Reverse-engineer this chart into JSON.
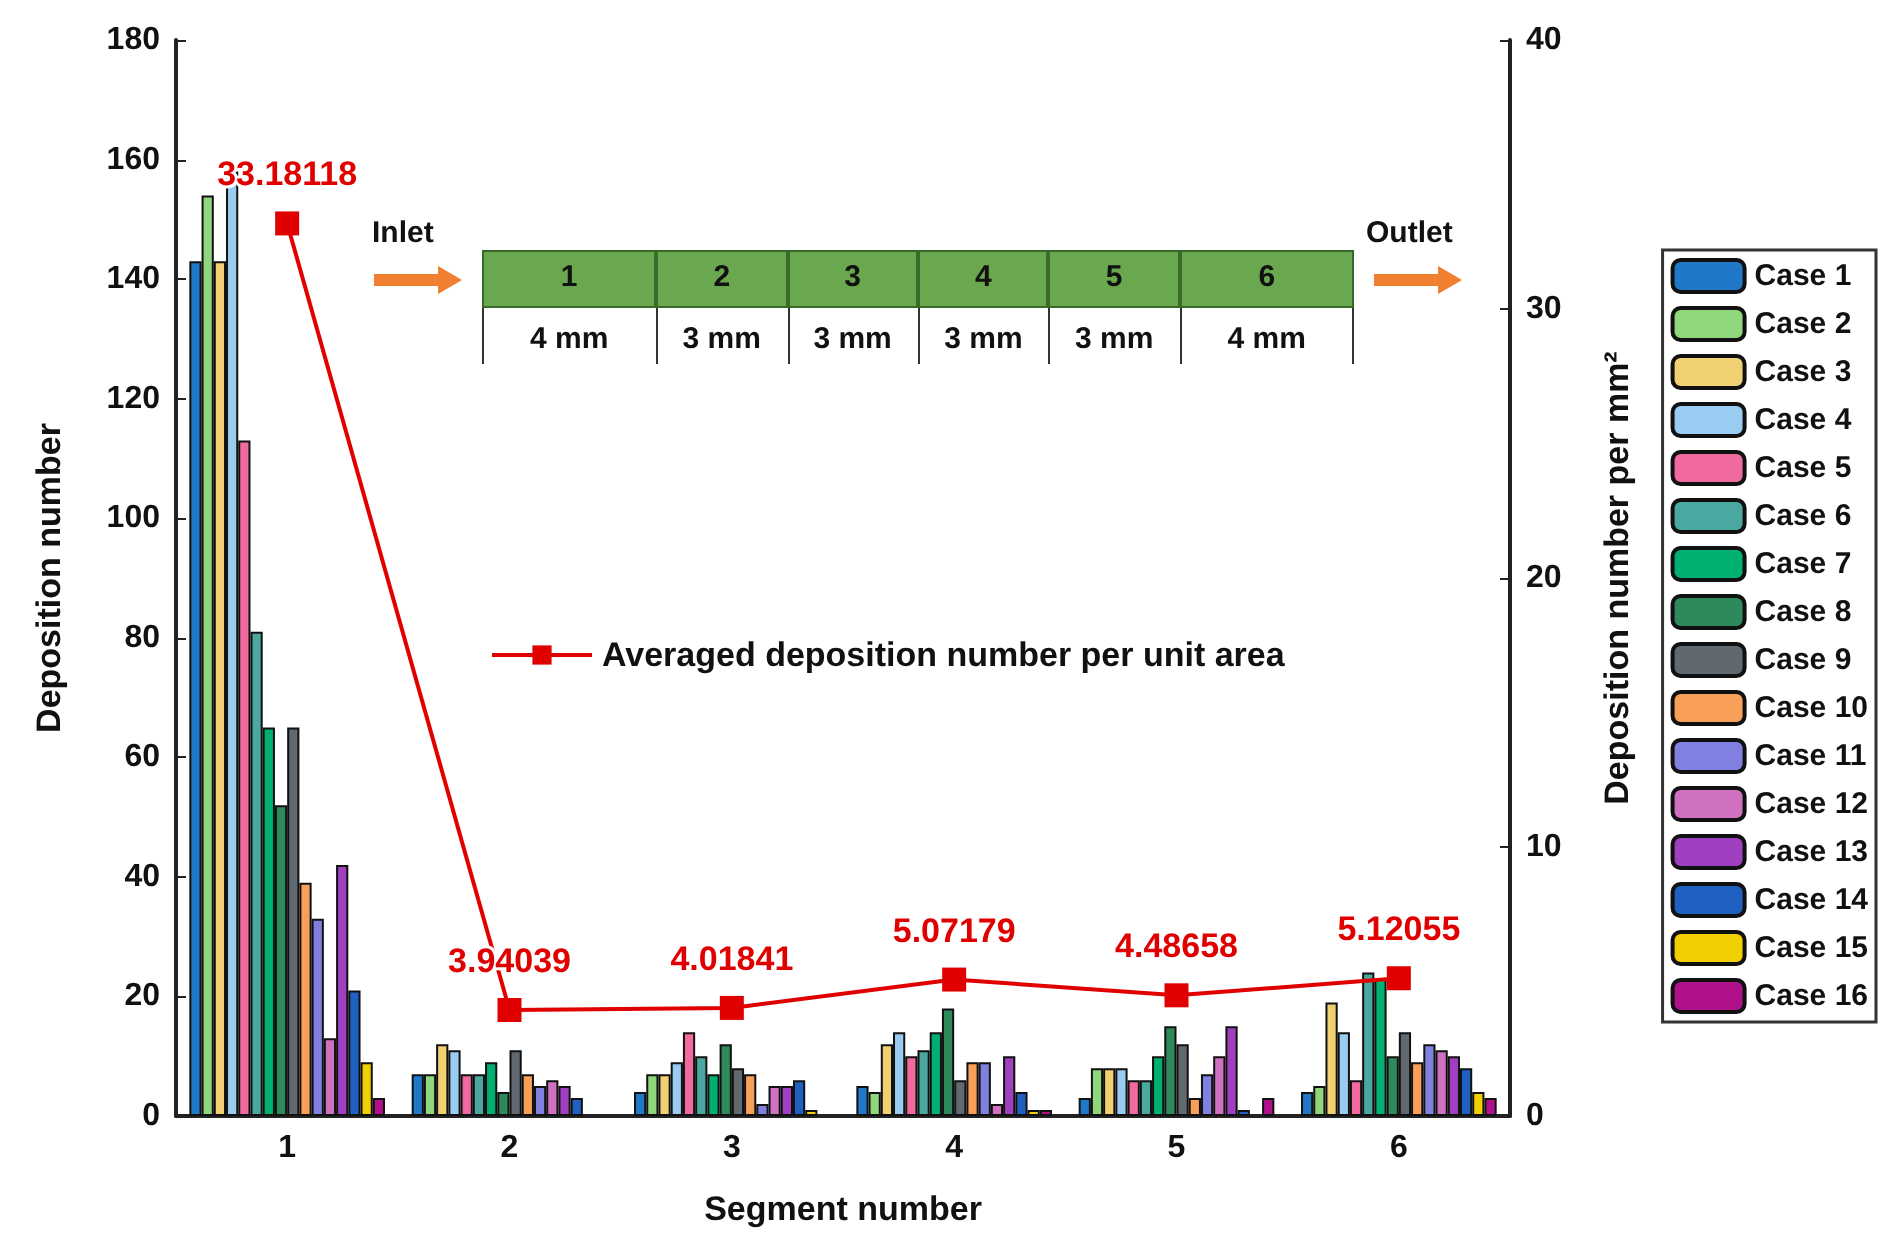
{
  "chart_data": {
    "type": "bar",
    "categories": [
      "1",
      "2",
      "3",
      "4",
      "5",
      "6"
    ],
    "xlabel": "Segment number",
    "ylabel": "Deposition number",
    "y2label": "Deposition number per mm²",
    "ylim": [
      0,
      180
    ],
    "yticks": [
      0,
      20,
      40,
      60,
      80,
      100,
      120,
      140,
      160,
      180
    ],
    "y2lim": [
      0,
      40
    ],
    "y2ticks": [
      0,
      10,
      20,
      30,
      40
    ],
    "grid": false,
    "legend": "right",
    "annotations": [
      "Inlet",
      "Outlet",
      "1",
      "2",
      "3",
      "4",
      "5",
      "6",
      "4 mm",
      "3 mm",
      "3 mm",
      "3 mm",
      "3 mm",
      "4 mm"
    ],
    "series": [
      {
        "name": "Case 1",
        "color": "#1f78c8",
        "values": [
          143,
          7,
          4,
          5,
          3,
          4
        ]
      },
      {
        "name": "Case 2",
        "color": "#8fd67c",
        "values": [
          154,
          7,
          7,
          4,
          8,
          5
        ]
      },
      {
        "name": "Case 3",
        "color": "#f0d070",
        "values": [
          143,
          12,
          7,
          12,
          8,
          19
        ]
      },
      {
        "name": "Case 4",
        "color": "#99ccf0",
        "values": [
          158,
          11,
          9,
          14,
          8,
          14
        ]
      },
      {
        "name": "Case 5",
        "color": "#f06aa0",
        "values": [
          113,
          7,
          14,
          10,
          6,
          6
        ]
      },
      {
        "name": "Case 6",
        "color": "#4aa8a0",
        "values": [
          81,
          7,
          10,
          11,
          6,
          24
        ]
      },
      {
        "name": "Case 7",
        "color": "#00b070",
        "values": [
          65,
          9,
          7,
          14,
          10,
          23
        ]
      },
      {
        "name": "Case 8",
        "color": "#2e8a5a",
        "values": [
          52,
          4,
          12,
          18,
          15,
          10
        ]
      },
      {
        "name": "Case 9",
        "color": "#606870",
        "values": [
          65,
          11,
          8,
          6,
          12,
          14
        ]
      },
      {
        "name": "Case 10",
        "color": "#f8a058",
        "values": [
          39,
          7,
          7,
          9,
          3,
          9
        ]
      },
      {
        "name": "Case 11",
        "color": "#8080e0",
        "values": [
          33,
          5,
          2,
          9,
          7,
          12
        ]
      },
      {
        "name": "Case 12",
        "color": "#d070c0",
        "values": [
          13,
          6,
          5,
          2,
          10,
          11
        ]
      },
      {
        "name": "Case 13",
        "color": "#a040c0",
        "values": [
          42,
          5,
          5,
          10,
          15,
          10
        ]
      },
      {
        "name": "Case 14",
        "color": "#2060c0",
        "values": [
          21,
          3,
          6,
          4,
          1,
          8
        ]
      },
      {
        "name": "Case 15",
        "color": "#f0d000",
        "values": [
          9,
          0,
          1,
          1,
          0,
          4
        ]
      },
      {
        "name": "Case 16",
        "color": "#b0108a",
        "values": [
          3,
          0,
          0,
          1,
          3,
          3
        ]
      },
      {
        "name": "Averaged deposition number per unit area",
        "type": "line",
        "axis": "y2",
        "color": "#e00000",
        "marker": "square",
        "line_style": "solid",
        "values": [
          33.18118,
          3.94039,
          4.01841,
          5.07179,
          4.48658,
          5.12055
        ],
        "value_labels": [
          "33.18118",
          "3.94039",
          "4.01841",
          "5.07179",
          "4.48658",
          "5.12055"
        ]
      }
    ]
  }
}
